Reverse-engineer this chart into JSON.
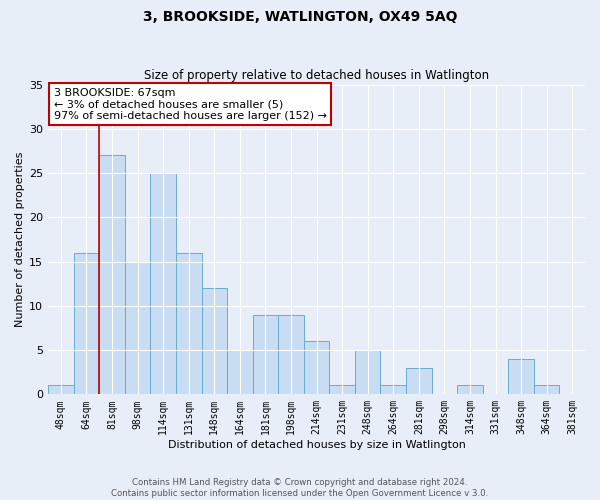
{
  "title": "3, BROOKSIDE, WATLINGTON, OX49 5AQ",
  "subtitle": "Size of property relative to detached houses in Watlington",
  "xlabel": "Distribution of detached houses by size in Watlington",
  "ylabel": "Number of detached properties",
  "bin_labels": [
    "48sqm",
    "64sqm",
    "81sqm",
    "98sqm",
    "114sqm",
    "131sqm",
    "148sqm",
    "164sqm",
    "181sqm",
    "198sqm",
    "214sqm",
    "231sqm",
    "248sqm",
    "264sqm",
    "281sqm",
    "298sqm",
    "314sqm",
    "331sqm",
    "348sqm",
    "364sqm",
    "381sqm"
  ],
  "bar_values": [
    1,
    16,
    27,
    15,
    25,
    16,
    12,
    5,
    9,
    9,
    6,
    1,
    5,
    1,
    3,
    0,
    1,
    0,
    4,
    1,
    0
  ],
  "bar_color": "#c9ddf2",
  "bar_edge_color": "#6aabd2",
  "ylim": [
    0,
    35
  ],
  "yticks": [
    0,
    5,
    10,
    15,
    20,
    25,
    30,
    35
  ],
  "annotation_line1": "3 BROOKSIDE: 67sqm",
  "annotation_line2": "← 3% of detached houses are smaller (5)",
  "annotation_line3": "97% of semi-detached houses are larger (152) →",
  "annotation_box_edge_color": "#c00000",
  "annotation_box_bg_color": "#ffffff",
  "red_line_bin_index": 1.5,
  "footer_line1": "Contains HM Land Registry data © Crown copyright and database right 2024.",
  "footer_line2": "Contains public sector information licensed under the Open Government Licence v 3.0.",
  "bg_color": "#e8eef8",
  "grid_color": "#ffffff",
  "title_fontsize": 10,
  "subtitle_fontsize": 8.5,
  "annotation_fontsize": 8,
  "ylabel_fontsize": 8,
  "xlabel_fontsize": 8,
  "tick_fontsize": 7
}
